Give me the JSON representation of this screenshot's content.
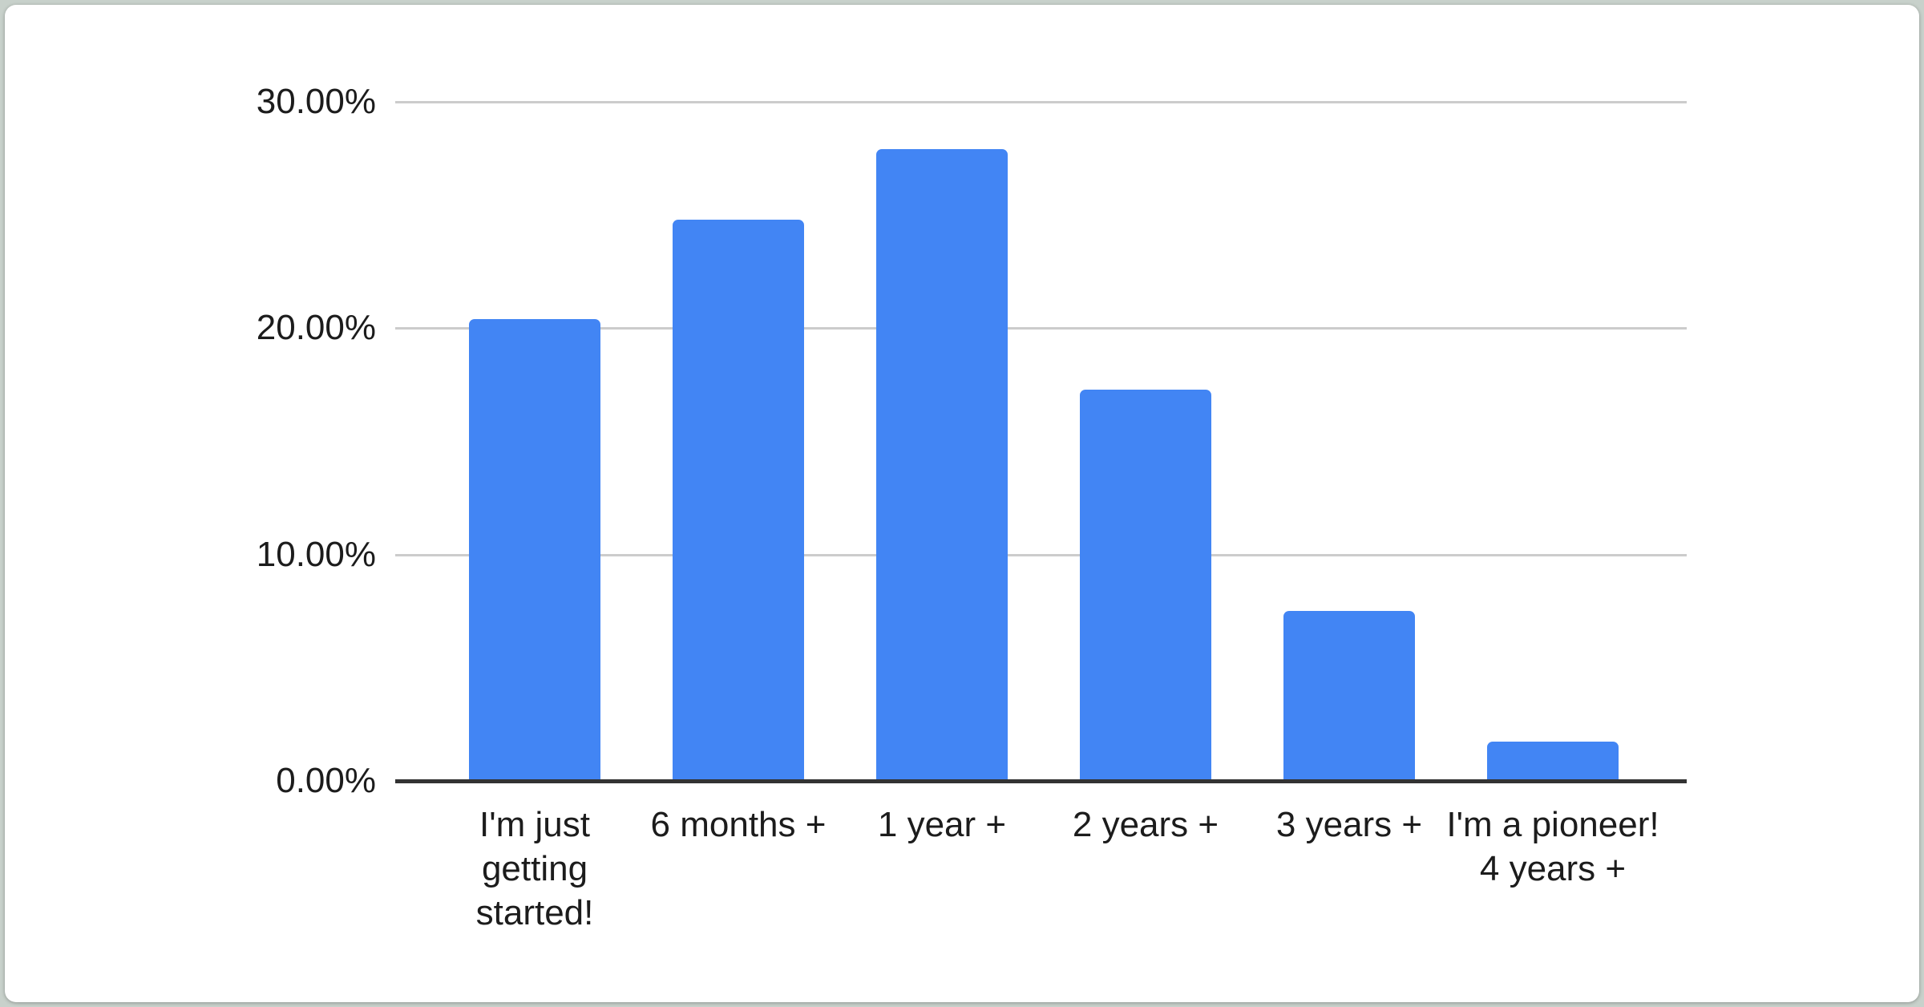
{
  "page": {
    "background_color": "#c8d1cb",
    "card_background_color": "#ffffff"
  },
  "chart_data": {
    "type": "bar",
    "title": "",
    "xlabel": "",
    "ylabel": "",
    "categories": [
      "I'm just getting started!",
      "6 months +",
      "1 year +",
      "2 years +",
      "3 years +",
      "I'm a pioneer! 4 years +"
    ],
    "values": [
      20.4,
      24.8,
      27.9,
      17.3,
      7.5,
      1.75
    ],
    "value_unit": "%",
    "ylim": [
      0,
      30
    ],
    "y_ticks": [
      {
        "value": 0,
        "label": "0.00%"
      },
      {
        "value": 10,
        "label": "10.00%"
      },
      {
        "value": 20,
        "label": "20.00%"
      },
      {
        "value": 30,
        "label": "30.00%"
      }
    ],
    "grid": true,
    "legend_position": "none",
    "bar_color": "#4285f4",
    "gridline_color": "#cccccc",
    "baseline_color": "#333333",
    "label_color": "#1c1c1c"
  }
}
